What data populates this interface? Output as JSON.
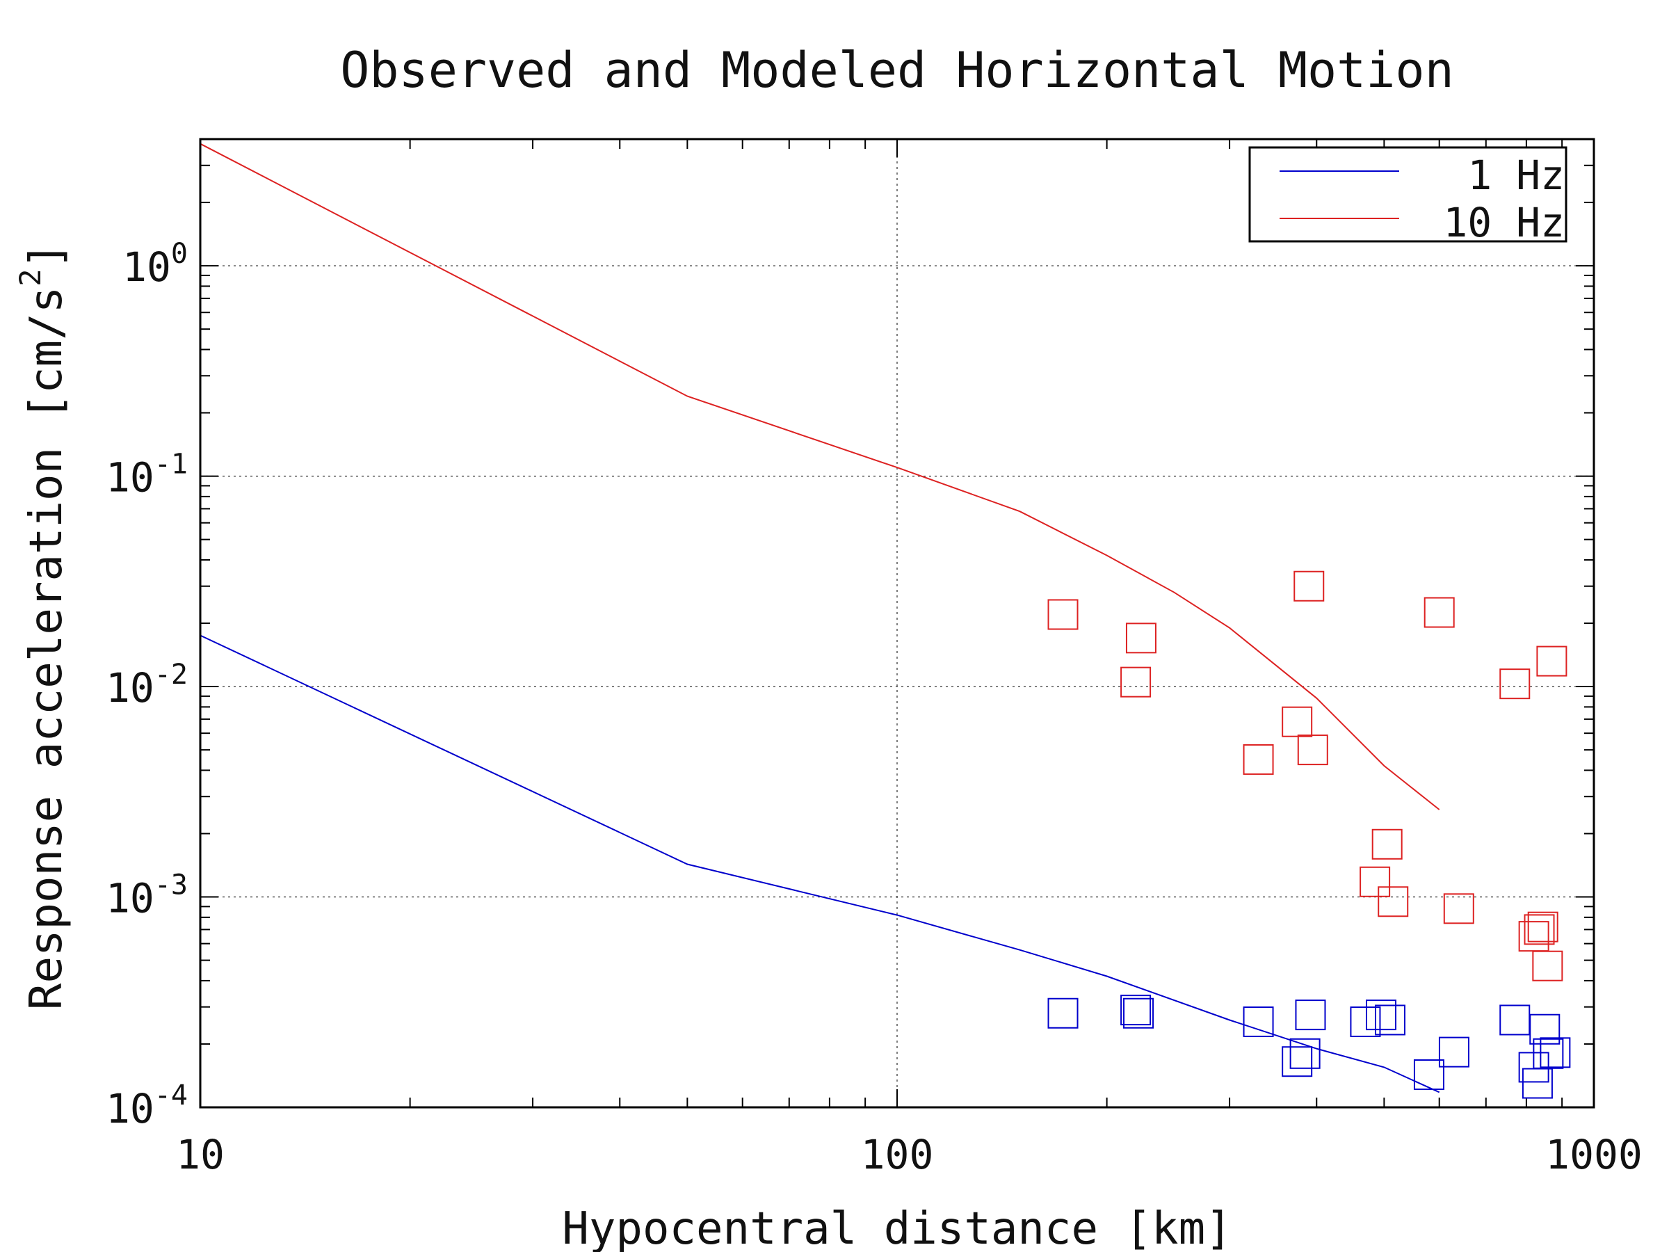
{
  "chart_data": {
    "type": "scatter",
    "title": "Observed and Modeled Horizontal Motion",
    "xlabel": "Hypocentral distance [km]",
    "ylabel": "Response acceleration [cm/s",
    "ylabel_sup": "2",
    "ylabel_end": "]",
    "xscale": "log",
    "yscale": "log",
    "xlim": [
      10,
      1000
    ],
    "ylim": [
      0.0001,
      4
    ],
    "grid": true,
    "legend_position": "top-right",
    "x_ticks": [
      {
        "value": 10,
        "label": "10"
      },
      {
        "value": 100,
        "label": "100"
      },
      {
        "value": 1000,
        "label": "1000"
      }
    ],
    "y_ticks": [
      {
        "value": 0.0001,
        "base": "10",
        "exp": "-4"
      },
      {
        "value": 0.001,
        "base": "10",
        "exp": "-3"
      },
      {
        "value": 0.01,
        "base": "10",
        "exp": "-2"
      },
      {
        "value": 0.1,
        "base": "10",
        "exp": "-1"
      },
      {
        "value": 1,
        "base": "10",
        "exp": "0"
      }
    ],
    "series": [
      {
        "name": "1 Hz",
        "color": "#0000cc",
        "line": [
          [
            10,
            0.0175
          ],
          [
            50,
            0.00143
          ],
          [
            100,
            0.00082
          ],
          [
            150,
            0.00056
          ],
          [
            200,
            0.00042
          ],
          [
            300,
            0.00026
          ],
          [
            400,
            0.00019
          ],
          [
            500,
            0.000155
          ],
          [
            600,
            0.000118
          ]
        ],
        "points": [
          [
            173,
            0.00028
          ],
          [
            220,
            0.00029
          ],
          [
            222,
            0.00028
          ],
          [
            330,
            0.000255
          ],
          [
            375,
            0.000165
          ],
          [
            385,
            0.00018
          ],
          [
            392,
            0.000275
          ],
          [
            470,
            0.000255
          ],
          [
            495,
            0.000275
          ],
          [
            510,
            0.00026
          ],
          [
            580,
            0.000143
          ],
          [
            630,
            0.000183
          ],
          [
            770,
            0.00026
          ],
          [
            820,
            0.000155
          ],
          [
            830,
            0.00013
          ],
          [
            850,
            0.000235
          ],
          [
            860,
            0.00018
          ],
          [
            880,
            0.000182
          ]
        ]
      },
      {
        "name": "10 Hz",
        "color": "#dd2222",
        "line": [
          [
            10,
            3.8
          ],
          [
            50,
            0.24
          ],
          [
            100,
            0.11
          ],
          [
            150,
            0.068
          ],
          [
            200,
            0.042
          ],
          [
            250,
            0.028
          ],
          [
            300,
            0.019
          ],
          [
            400,
            0.0088
          ],
          [
            500,
            0.0042
          ],
          [
            600,
            0.0026
          ]
        ],
        "points": [
          [
            173,
            0.022
          ],
          [
            220,
            0.0105
          ],
          [
            224,
            0.017
          ],
          [
            330,
            0.0045
          ],
          [
            375,
            0.0068
          ],
          [
            390,
            0.03
          ],
          [
            395,
            0.005
          ],
          [
            485,
            0.00118
          ],
          [
            505,
            0.00178
          ],
          [
            515,
            0.00095
          ],
          [
            600,
            0.0225
          ],
          [
            640,
            0.00088
          ],
          [
            770,
            0.0103
          ],
          [
            820,
            0.00065
          ],
          [
            835,
            0.0007
          ],
          [
            845,
            0.00072
          ],
          [
            858,
            0.00047
          ],
          [
            870,
            0.0132
          ]
        ]
      }
    ]
  }
}
